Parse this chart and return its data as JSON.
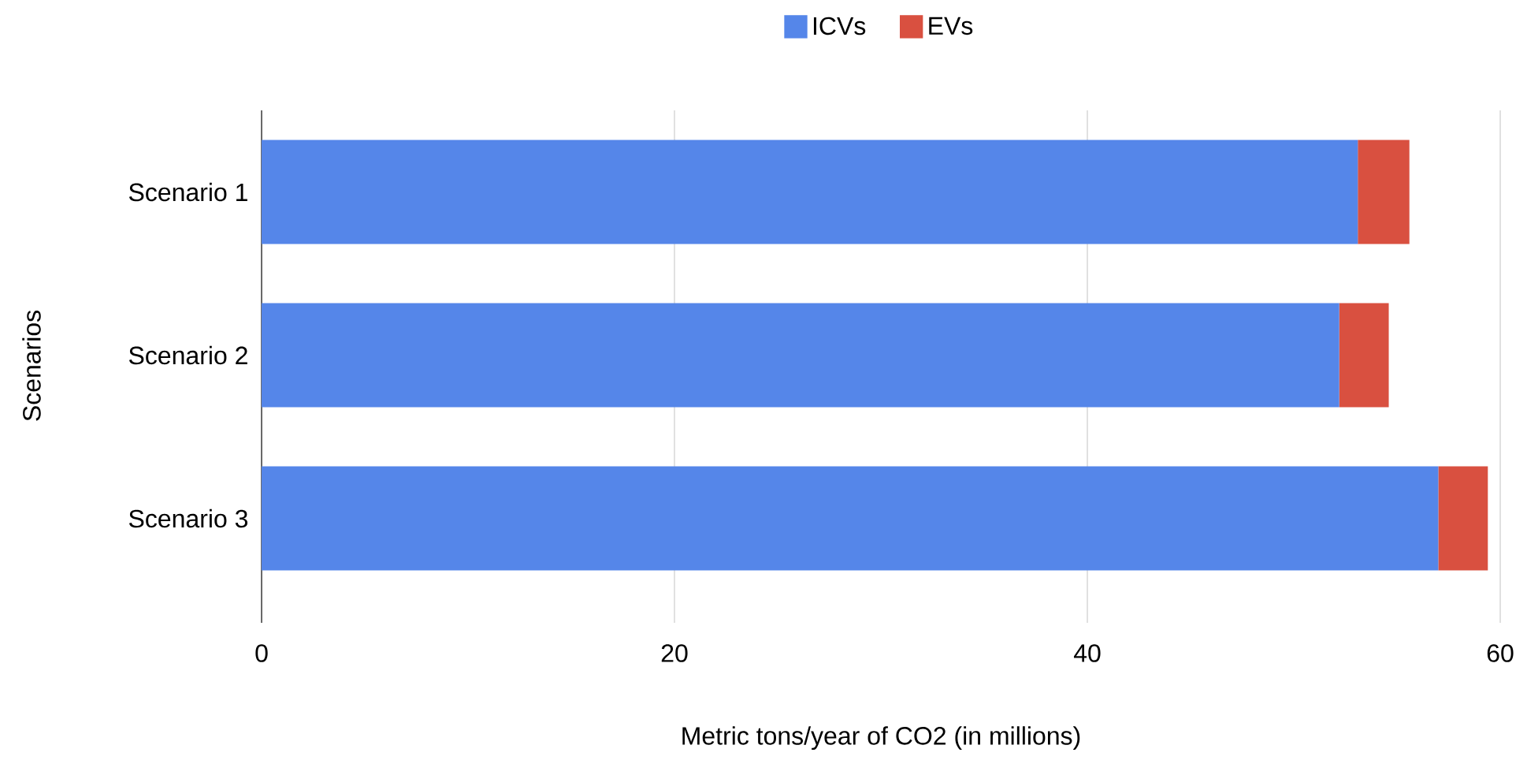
{
  "chart_data": {
    "type": "bar",
    "orientation": "horizontal",
    "stacked": true,
    "categories": [
      "Scenario 1",
      "Scenario 2",
      "Scenario 3"
    ],
    "series": [
      {
        "name": "ICVs",
        "color": "#5586e9",
        "values": [
          53.1,
          52.2,
          57.0
        ]
      },
      {
        "name": "EVs",
        "color": "#d95040",
        "values": [
          2.5,
          2.4,
          2.4
        ]
      }
    ],
    "xlabel": "Metric tons/year of CO2 (in millions)",
    "ylabel": "Scenarios",
    "xlim": [
      0,
      60
    ],
    "xticks": [
      0,
      20,
      40,
      60
    ],
    "grid": "x",
    "legend": "top"
  }
}
